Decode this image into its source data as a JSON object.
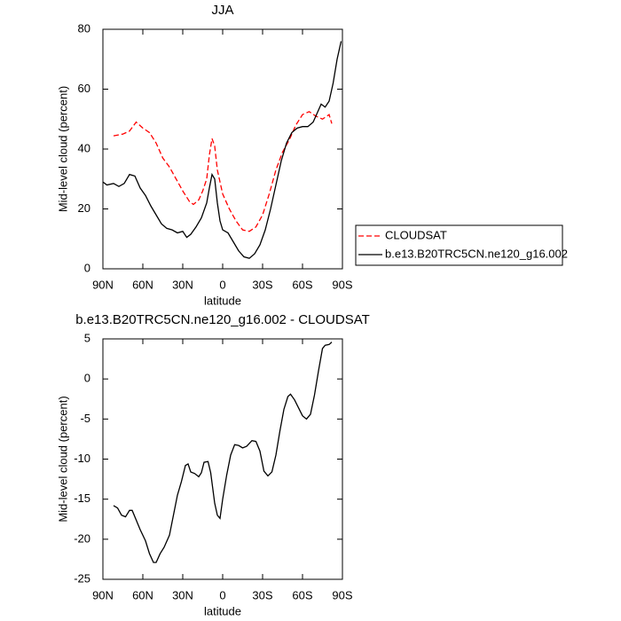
{
  "chart_data": [
    {
      "type": "line",
      "title": "JJA",
      "xlabel": "latitude",
      "ylabel": "Mid-level cloud (percent)",
      "xlim": [
        90,
        -90
      ],
      "xticks": [
        {
          "value": 90,
          "label": "90N"
        },
        {
          "value": 60,
          "label": "60N"
        },
        {
          "value": 30,
          "label": "30N"
        },
        0,
        {
          "value": -30,
          "label": "30S"
        },
        {
          "value": -60,
          "label": "60S"
        },
        {
          "value": -90,
          "label": "90S"
        }
      ],
      "ylim": [
        0,
        80
      ],
      "yticks": [
        0,
        20,
        40,
        60,
        80
      ],
      "legend": "right",
      "series": [
        {
          "name": "CLOUDSAT",
          "color": "#ff0000",
          "dash": "dashed",
          "x": [
            82,
            75,
            70,
            65,
            60,
            55,
            50,
            45,
            40,
            35,
            30,
            25,
            22,
            18,
            15,
            12,
            10,
            8,
            6,
            4,
            0,
            -5,
            -10,
            -15,
            -20,
            -25,
            -30,
            -35,
            -40,
            -45,
            -50,
            -55,
            -60,
            -65,
            -70,
            -75,
            -80,
            -82
          ],
          "values": [
            44.4,
            45,
            46,
            49,
            47,
            45.5,
            42,
            37,
            34,
            30,
            26,
            22.5,
            21.5,
            23,
            26,
            30,
            38,
            43.5,
            41,
            33,
            25,
            20,
            16,
            13,
            12.5,
            14,
            18,
            25,
            33,
            39,
            43,
            48,
            51.5,
            52.5,
            51,
            50,
            51.5,
            48.5
          ]
        },
        {
          "name": "b.e13.B20TRC5CN.ne120_g16.002",
          "color": "#000000",
          "dash": "solid",
          "x": [
            90,
            87,
            82,
            78,
            74,
            70,
            66,
            62,
            58,
            54,
            50,
            46,
            42,
            38,
            34,
            30,
            27,
            24,
            20,
            16,
            12,
            10,
            8,
            6,
            4,
            2,
            0,
            -4,
            -8,
            -12,
            -16,
            -20,
            -24,
            -28,
            -32,
            -36,
            -40,
            -44,
            -48,
            -52,
            -56,
            -60,
            -64,
            -68,
            -71,
            -74,
            -77,
            -80,
            -83,
            -86,
            -89
          ],
          "values": [
            29,
            28,
            28.5,
            27.5,
            28.5,
            31.5,
            31,
            27,
            24.5,
            21,
            18,
            15,
            13.5,
            13,
            12,
            12.5,
            10.5,
            11.5,
            14,
            17,
            22,
            27,
            31.5,
            30,
            22,
            16,
            13,
            12,
            9,
            6,
            4,
            3.5,
            5,
            8,
            13,
            20,
            28,
            36,
            42,
            45.5,
            47,
            47.5,
            47.5,
            49,
            52,
            55,
            54,
            56,
            62,
            70,
            76
          ]
        }
      ]
    },
    {
      "type": "line",
      "title": "b.e13.B20TRC5CN.ne120_g16.002 - CLOUDSAT",
      "xlabel": "latitude",
      "ylabel": "Mid-level cloud (percent)",
      "xlim": [
        90,
        -90
      ],
      "xticks": [
        {
          "value": 90,
          "label": "90N"
        },
        {
          "value": 60,
          "label": "60N"
        },
        {
          "value": 30,
          "label": "30N"
        },
        0,
        {
          "value": -30,
          "label": "30S"
        },
        {
          "value": -60,
          "label": "60S"
        },
        {
          "value": -90,
          "label": "90S"
        }
      ],
      "ylim": [
        -25,
        5
      ],
      "yticks": [
        -25,
        -20,
        -15,
        -10,
        -5,
        0,
        5
      ],
      "series": [
        {
          "color": "#000000",
          "dash": "solid",
          "x": [
            82,
            79,
            76,
            73,
            70,
            68,
            65,
            62,
            58,
            55,
            52,
            50,
            47,
            44,
            40,
            37,
            34,
            31,
            28,
            26,
            24,
            21,
            18,
            16,
            14,
            11,
            9,
            6,
            4,
            2,
            0,
            -3,
            -6,
            -9,
            -12,
            -15,
            -18,
            -22,
            -25,
            -28,
            -31,
            -34,
            -37,
            -40,
            -43,
            -46,
            -49,
            -51,
            -54,
            -57,
            -60,
            -63,
            -66,
            -69,
            -72,
            -75,
            -77,
            -80,
            -82
          ],
          "values": [
            -15.8,
            -16.1,
            -17,
            -17.2,
            -16.4,
            -16.4,
            -17.6,
            -18.8,
            -20.2,
            -21.8,
            -22.9,
            -22.9,
            -21.8,
            -21,
            -19.5,
            -17,
            -14.5,
            -12.8,
            -10.8,
            -10.6,
            -11.6,
            -11.8,
            -12.2,
            -11.7,
            -10.4,
            -10.3,
            -11.7,
            -15.5,
            -17,
            -17.4,
            -15,
            -12,
            -9.5,
            -8.2,
            -8.3,
            -8.6,
            -8.4,
            -7.7,
            -7.8,
            -9,
            -11.5,
            -12.1,
            -11.6,
            -9.5,
            -6.5,
            -3.8,
            -2.2,
            -1.9,
            -2.6,
            -3.6,
            -4.6,
            -5,
            -4.4,
            -2,
            1,
            3.8,
            4.2,
            4.3,
            4.6
          ]
        }
      ]
    }
  ]
}
